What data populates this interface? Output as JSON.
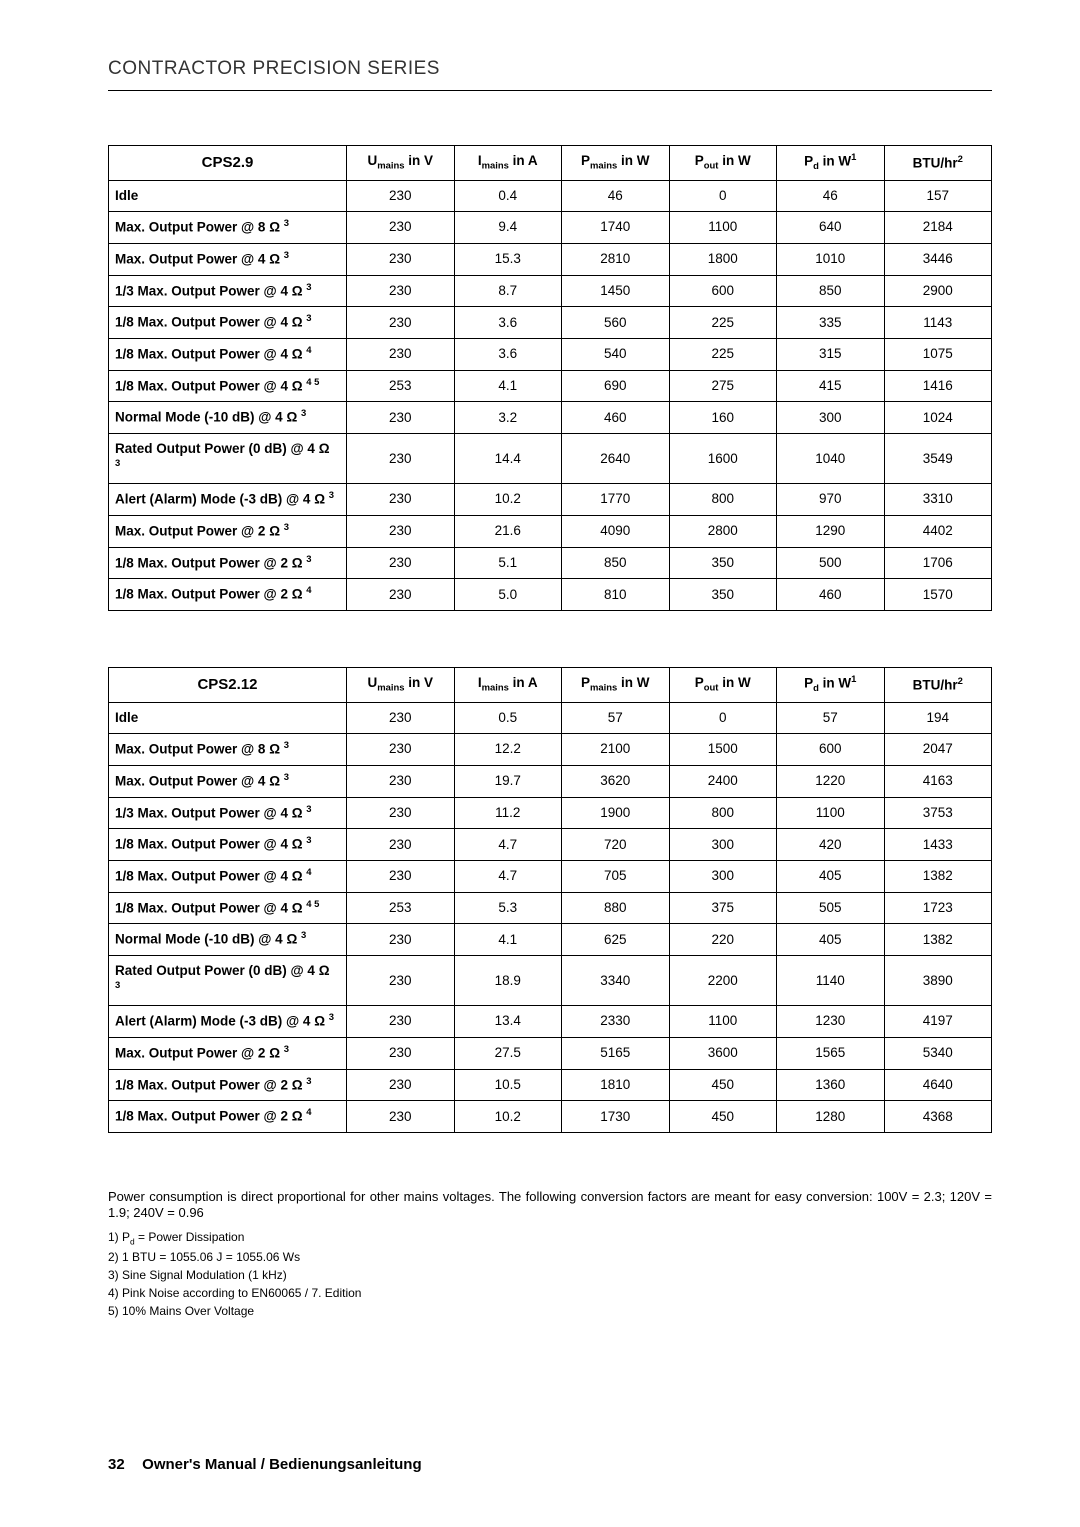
{
  "header": "CONTRACTOR PRECISION SERIES",
  "col_headers": {
    "u": {
      "pre": "U",
      "sub": "mains",
      "post": " in V"
    },
    "i": {
      "pre": "I",
      "sub": "mains",
      "post": " in A"
    },
    "p": {
      "pre": "P",
      "sub": "mains",
      "post": " in W"
    },
    "pout": {
      "pre": "P",
      "sub": "out",
      "post": " in W"
    },
    "pd": {
      "pre": "P",
      "sub": "d",
      "post": " in W",
      "sup": "1"
    },
    "btu": {
      "pre": "BTU/hr",
      "sup": "2"
    }
  },
  "tables": [
    {
      "title": "CPS2.9",
      "rows": [
        {
          "l": {
            "t": "Idle"
          },
          "v": [
            "230",
            "0.4",
            "46",
            "0",
            "46",
            "157"
          ]
        },
        {
          "l": {
            "t": "Max. Output Power @ 8 ",
            "ohm": true,
            "s": "3"
          },
          "v": [
            "230",
            "9.4",
            "1740",
            "1100",
            "640",
            "2184"
          ]
        },
        {
          "l": {
            "t": "Max. Output Power @ 4 ",
            "ohm": true,
            "s": "3"
          },
          "v": [
            "230",
            "15.3",
            "2810",
            "1800",
            "1010",
            "3446"
          ]
        },
        {
          "l": {
            "t": "1/3 Max. Output Power @ 4 ",
            "ohm": true,
            "s": "3"
          },
          "v": [
            "230",
            "8.7",
            "1450",
            "600",
            "850",
            "2900"
          ]
        },
        {
          "l": {
            "t": "1/8 Max. Output Power @ 4 ",
            "ohm": true,
            "s": "3"
          },
          "v": [
            "230",
            "3.6",
            "560",
            "225",
            "335",
            "1143"
          ]
        },
        {
          "l": {
            "t": "1/8 Max. Output Power @ 4 ",
            "ohm": true,
            "s": "4"
          },
          "v": [
            "230",
            "3.6",
            "540",
            "225",
            "315",
            "1075"
          ]
        },
        {
          "l": {
            "t": "1/8 Max. Output Power @ 4 ",
            "ohm": true,
            "s": "4 5"
          },
          "v": [
            "253",
            "4.1",
            "690",
            "275",
            "415",
            "1416"
          ]
        },
        {
          "l": {
            "t": "Normal Mode (-10 dB) @ 4 ",
            "ohm": true,
            "s": "3"
          },
          "v": [
            "230",
            "3.2",
            "460",
            "160",
            "300",
            "1024"
          ]
        },
        {
          "l": {
            "t": "Rated Output Power (0 dB) @ 4 ",
            "ohm": true,
            "s": "3"
          },
          "v": [
            "230",
            "14.4",
            "2640",
            "1600",
            "1040",
            "3549"
          ]
        },
        {
          "l": {
            "t": "Alert (Alarm) Mode (-3 dB) @ 4 ",
            "ohm": true,
            "s": "3"
          },
          "v": [
            "230",
            "10.2",
            "1770",
            "800",
            "970",
            "3310"
          ]
        },
        {
          "l": {
            "t": "Max. Output Power @ 2 ",
            "ohm": true,
            "s": "3"
          },
          "v": [
            "230",
            "21.6",
            "4090",
            "2800",
            "1290",
            "4402"
          ]
        },
        {
          "l": {
            "t": "1/8 Max. Output Power @ 2 ",
            "ohm": true,
            "s": "3"
          },
          "v": [
            "230",
            "5.1",
            "850",
            "350",
            "500",
            "1706"
          ]
        },
        {
          "l": {
            "t": "1/8 Max. Output Power @ 2 ",
            "ohm": true,
            "s": "4"
          },
          "v": [
            "230",
            "5.0",
            "810",
            "350",
            "460",
            "1570"
          ]
        }
      ]
    },
    {
      "title": "CPS2.12",
      "rows": [
        {
          "l": {
            "t": "Idle"
          },
          "v": [
            "230",
            "0.5",
            "57",
            "0",
            "57",
            "194"
          ]
        },
        {
          "l": {
            "t": "Max. Output Power @ 8 ",
            "ohm": true,
            "s": "3"
          },
          "v": [
            "230",
            "12.2",
            "2100",
            "1500",
            "600",
            "2047"
          ]
        },
        {
          "l": {
            "t": "Max. Output Power @ 4 ",
            "ohm": true,
            "s": "3"
          },
          "v": [
            "230",
            "19.7",
            "3620",
            "2400",
            "1220",
            "4163"
          ]
        },
        {
          "l": {
            "t": "1/3 Max. Output Power @ 4 ",
            "ohm": true,
            "s": "3"
          },
          "v": [
            "230",
            "11.2",
            "1900",
            "800",
            "1100",
            "3753"
          ]
        },
        {
          "l": {
            "t": "1/8 Max. Output Power @ 4 ",
            "ohm": true,
            "s": "3"
          },
          "v": [
            "230",
            "4.7",
            "720",
            "300",
            "420",
            "1433"
          ]
        },
        {
          "l": {
            "t": "1/8 Max. Output Power @ 4 ",
            "ohm": true,
            "s": "4"
          },
          "v": [
            "230",
            "4.7",
            "705",
            "300",
            "405",
            "1382"
          ]
        },
        {
          "l": {
            "t": "1/8 Max. Output Power @ 4 ",
            "ohm": true,
            "s": "4 5"
          },
          "v": [
            "253",
            "5.3",
            "880",
            "375",
            "505",
            "1723"
          ]
        },
        {
          "l": {
            "t": "Normal Mode (-10 dB) @ 4 ",
            "ohm": true,
            "s": "3"
          },
          "v": [
            "230",
            "4.1",
            "625",
            "220",
            "405",
            "1382"
          ]
        },
        {
          "l": {
            "t": "Rated Output Power (0 dB) @ 4 ",
            "ohm": true,
            "s": "3"
          },
          "v": [
            "230",
            "18.9",
            "3340",
            "2200",
            "1140",
            "3890"
          ]
        },
        {
          "l": {
            "t": "Alert (Alarm) Mode (-3 dB) @ 4 ",
            "ohm": true,
            "s": "3"
          },
          "v": [
            "230",
            "13.4",
            "2330",
            "1100",
            "1230",
            "4197"
          ]
        },
        {
          "l": {
            "t": "Max. Output Power @ 2 ",
            "ohm": true,
            "s": "3"
          },
          "v": [
            "230",
            "27.5",
            "5165",
            "3600",
            "1565",
            "5340"
          ]
        },
        {
          "l": {
            "t": "1/8 Max. Output Power @ 2 ",
            "ohm": true,
            "s": "3"
          },
          "v": [
            "230",
            "10.5",
            "1810",
            "450",
            "1360",
            "4640"
          ]
        },
        {
          "l": {
            "t": "1/8 Max. Output Power @ 2 ",
            "ohm": true,
            "s": "4"
          },
          "v": [
            "230",
            "10.2",
            "1730",
            "450",
            "1280",
            "4368"
          ]
        }
      ]
    }
  ],
  "notes": "Power consumption is direct proportional for other mains voltages. The following conversion factors are meant for easy conversion: 100V = 2.3; 120V = 1.9; 240V = 0.96",
  "footnotes": [
    {
      "pre": "1) P",
      "sub": "d",
      "post": " = Power Dissipation"
    },
    {
      "pre": "2) 1 BTU = 1055.06 J = 1055.06 Ws"
    },
    {
      "pre": "3) Sine Signal Modulation (1 kHz)"
    },
    {
      "pre": "4) Pink Noise according to EN60065 / 7. Edition"
    },
    {
      "pre": "5) 10% Mains Over Voltage"
    }
  ],
  "footer": {
    "page": "32",
    "title": "Owner's Manual / Bedienungsanleitung"
  }
}
